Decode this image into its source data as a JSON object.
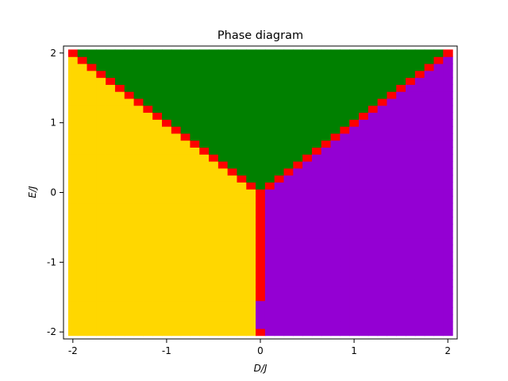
{
  "chart_data": {
    "type": "heatmap",
    "title": "Phase diagram",
    "xlabel": "D/J",
    "ylabel": "E/J",
    "xlim": [
      -2.1,
      2.1
    ],
    "ylim": [
      -2.1,
      2.1
    ],
    "x_ticks": [
      -2,
      -1,
      0,
      1,
      2
    ],
    "y_ticks": [
      -2,
      -1,
      0,
      1,
      2
    ],
    "x_tick_labels": [
      "-2",
      "-1",
      "0",
      "1",
      "2"
    ],
    "y_tick_labels": [
      "-2",
      "-1",
      "0",
      "1",
      "2"
    ],
    "grid": false,
    "cell_size": 0.1,
    "colors": {
      "yellow": "#ffd700",
      "green": "#008000",
      "purple": "#9400d3",
      "red": "#ff0000"
    },
    "regions": [
      {
        "color": "green",
        "description": "E/J > |D/J|"
      },
      {
        "color": "yellow",
        "description": "D/J < 0 and E/J < |D/J|"
      },
      {
        "color": "purple",
        "description": "D/J > 0 and E/J < |D/J|"
      },
      {
        "color": "red",
        "description": "phase boundary cells along E/J = |D/J| and D/J = 0"
      }
    ]
  }
}
